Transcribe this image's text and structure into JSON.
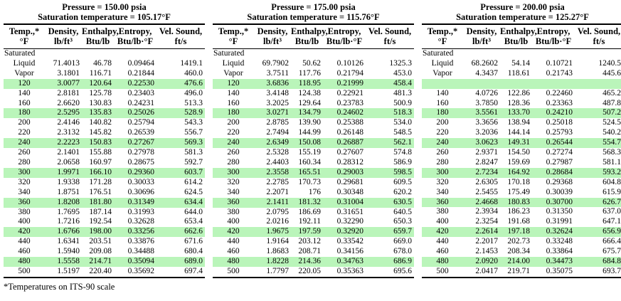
{
  "colors": {
    "highlight": "#baf5ba"
  },
  "footnote": "*Temperatures on ITS-90 scale",
  "columns": [
    {
      "line1": "Temp.,*",
      "line2": "°F"
    },
    {
      "line1": "Density,",
      "line2": "lb/ft³"
    },
    {
      "line1": "Enthalpy,",
      "line2": "Btu/lb"
    },
    {
      "line1": "Entropy,",
      "line2": "Btu/lb·°F"
    },
    {
      "line1": "Vel. Sound,",
      "line2": "ft/s"
    }
  ],
  "panels": [
    {
      "title_line1": "Pressure = 150.00 psia",
      "title_line2": "Saturation temperature = 105.17°F",
      "rows": [
        {
          "label": "Saturated",
          "d": "",
          "h": "",
          "s": "",
          "v": "",
          "hl": false
        },
        {
          "label": "Liquid",
          "d": "71.4013",
          "h": "46.78",
          "s": "0.09464",
          "v": "1419.1",
          "hl": false
        },
        {
          "label": "Vapor",
          "d": "3.1801",
          "h": "116.71",
          "s": "0.21844",
          "v": "460.0",
          "hl": false
        },
        {
          "t": "120",
          "d": "3.0077",
          "h": "120.64",
          "s": "0.22530",
          "v": "476.6",
          "hl": true
        },
        {
          "t": "140",
          "d": "2.8181",
          "h": "125.78",
          "s": "0.23403",
          "v": "496.0",
          "hl": false
        },
        {
          "t": "160",
          "d": "2.6620",
          "h": "130.83",
          "s": "0.24231",
          "v": "513.3",
          "hl": false
        },
        {
          "t": "180",
          "d": "2.5295",
          "h": "135.83",
          "s": "0.25026",
          "v": "528.9",
          "hl": true
        },
        {
          "t": "200",
          "d": "2.4146",
          "h": "140.82",
          "s": "0.25794",
          "v": "543.3",
          "hl": false
        },
        {
          "t": "220",
          "d": "2.3132",
          "h": "145.82",
          "s": "0.26539",
          "v": "556.7",
          "hl": false
        },
        {
          "t": "240",
          "d": "2.2223",
          "h": "150.83",
          "s": "0.27267",
          "v": "569.3",
          "hl": true
        },
        {
          "t": "260",
          "d": "2.1401",
          "h": "155.88",
          "s": "0.27978",
          "v": "581.3",
          "hl": false
        },
        {
          "t": "280",
          "d": "2.0658",
          "h": "160.97",
          "s": "0.28675",
          "v": "592.7",
          "hl": false
        },
        {
          "t": "300",
          "d": "1.9971",
          "h": "166.10",
          "s": "0.29360",
          "v": "603.7",
          "hl": true
        },
        {
          "t": "320",
          "d": "1.9338",
          "h": "171.28",
          "s": "0.30033",
          "v": "614.2",
          "hl": false
        },
        {
          "t": "340",
          "d": "1.8751",
          "h": "176.51",
          "s": "0.30696",
          "v": "624.5",
          "hl": false
        },
        {
          "t": "360",
          "d": "1.8208",
          "h": "181.80",
          "s": "0.31349",
          "v": "634.4",
          "hl": true
        },
        {
          "t": "380",
          "d": "1.7695",
          "h": "187.14",
          "s": "0.31993",
          "v": "644.0",
          "hl": false
        },
        {
          "t": "400",
          "d": "1.7216",
          "h": "192.54",
          "s": "0.32628",
          "v": "653.4",
          "hl": false
        },
        {
          "t": "420",
          "d": "1.6766",
          "h": "198.00",
          "s": "0.33256",
          "v": "662.6",
          "hl": true
        },
        {
          "t": "440",
          "d": "1.6341",
          "h": "203.51",
          "s": "0.33876",
          "v": "671.6",
          "hl": false
        },
        {
          "t": "460",
          "d": "1.5940",
          "h": "209.08",
          "s": "0.34488",
          "v": "680.4",
          "hl": false
        },
        {
          "t": "480",
          "d": "1.5558",
          "h": "214.71",
          "s": "0.35094",
          "v": "689.0",
          "hl": true
        },
        {
          "t": "500",
          "d": "1.5197",
          "h": "220.40",
          "s": "0.35692",
          "v": "697.4",
          "hl": false
        }
      ]
    },
    {
      "title_line1": "Pressure = 175.00 psia",
      "title_line2": "Saturation temperature = 115.76°F",
      "rows": [
        {
          "label": "Saturated",
          "d": "",
          "h": "",
          "s": "",
          "v": "",
          "hl": false
        },
        {
          "label": "Liquid",
          "d": "69.7902",
          "h": "50.62",
          "s": "0.10126",
          "v": "1325.3",
          "hl": false
        },
        {
          "label": "Vapor",
          "d": "3.7511",
          "h": "117.76",
          "s": "0.21794",
          "v": "453.0",
          "hl": false
        },
        {
          "t": "120",
          "d": "3.6836",
          "h": "118.95",
          "s": "0.21999",
          "v": "458.4",
          "hl": true
        },
        {
          "t": "140",
          "d": "3.4148",
          "h": "124.38",
          "s": "0.22921",
          "v": "481.3",
          "hl": false
        },
        {
          "t": "160",
          "d": "3.2025",
          "h": "129.64",
          "s": "0.23783",
          "v": "500.9",
          "hl": false
        },
        {
          "t": "180",
          "d": "3.0271",
          "h": "134.79",
          "s": "0.24602",
          "v": "518.3",
          "hl": true
        },
        {
          "t": "200",
          "d": "2.8785",
          "h": "139.90",
          "s": "0.25388",
          "v": "534.0",
          "hl": false
        },
        {
          "t": "220",
          "d": "2.7494",
          "h": "144.99",
          "s": "0.26148",
          "v": "548.5",
          "hl": false
        },
        {
          "t": "240",
          "d": "2.6349",
          "h": "150.08",
          "s": "0.26887",
          "v": "562.1",
          "hl": true
        },
        {
          "t": "260",
          "d": "2.5328",
          "h": "155.19",
          "s": "0.27607",
          "v": "574.8",
          "hl": false
        },
        {
          "t": "280",
          "d": "2.4403",
          "h": "160.34",
          "s": "0.28312",
          "v": "586.9",
          "hl": false
        },
        {
          "t": "300",
          "d": "2.3558",
          "h": "165.51",
          "s": "0.29003",
          "v": "598.5",
          "hl": true
        },
        {
          "t": "320",
          "d": "2.2785",
          "h": "170.73",
          "s": "0.29681",
          "v": "609.5",
          "hl": false
        },
        {
          "t": "340",
          "d": "2.2071",
          "h": "176",
          "s": "0.30348",
          "v": "620.2",
          "hl": false
        },
        {
          "t": "360",
          "d": "2.1411",
          "h": "181.32",
          "s": "0.31004",
          "v": "630.5",
          "hl": true
        },
        {
          "t": "380",
          "d": "2.0795",
          "h": "186.69",
          "s": "0.31651",
          "v": "640.5",
          "hl": false
        },
        {
          "t": "400",
          "d": "2.0216",
          "h": "192.11",
          "s": "0.32290",
          "v": "650.3",
          "hl": false
        },
        {
          "t": "420",
          "d": "1.9675",
          "h": "197.59",
          "s": "0.32920",
          "v": "659.7",
          "hl": true
        },
        {
          "t": "440",
          "d": "1.9164",
          "h": "203.12",
          "s": "0.33542",
          "v": "669.0",
          "hl": false
        },
        {
          "t": "460",
          "d": "1.8683",
          "h": "208.71",
          "s": "0.34156",
          "v": "678.0",
          "hl": false
        },
        {
          "t": "480",
          "d": "1.8228",
          "h": "214.36",
          "s": "0.34763",
          "v": "686.9",
          "hl": true
        },
        {
          "t": "500",
          "d": "1.7797",
          "h": "220.05",
          "s": "0.35363",
          "v": "695.6",
          "hl": false
        }
      ]
    },
    {
      "title_line1": "Pressure = 200.00 psia",
      "title_line2": "Saturation temperature = 125.27°F",
      "rows": [
        {
          "label": "Saturated",
          "d": "",
          "h": "",
          "s": "",
          "v": "",
          "hl": false
        },
        {
          "label": "Liquid",
          "d": "68.2602",
          "h": "54.14",
          "s": "0.10721",
          "v": "1240.5",
          "hl": false
        },
        {
          "label": "Vapor",
          "d": "4.3437",
          "h": "118.61",
          "s": "0.21743",
          "v": "445.6",
          "hl": false
        },
        {
          "t": "",
          "d": "",
          "h": "",
          "s": "",
          "v": "",
          "hl": true
        },
        {
          "t": "140",
          "d": "4.0726",
          "h": "122.86",
          "s": "0.22460",
          "v": "465.2",
          "hl": false
        },
        {
          "t": "160",
          "d": "3.7850",
          "h": "128.36",
          "s": "0.23363",
          "v": "487.8",
          "hl": false
        },
        {
          "t": "180",
          "d": "3.5561",
          "h": "133.70",
          "s": "0.24210",
          "v": "507.2",
          "hl": true
        },
        {
          "t": "200",
          "d": "3.3656",
          "h": "138.94",
          "s": "0.25018",
          "v": "524.5",
          "hl": false
        },
        {
          "t": "220",
          "d": "3.2036",
          "h": "144.14",
          "s": "0.25793",
          "v": "540.2",
          "hl": false
        },
        {
          "t": "240",
          "d": "3.0623",
          "h": "149.31",
          "s": "0.26544",
          "v": "554.7",
          "hl": true
        },
        {
          "t": "260",
          "d": "2.9371",
          "h": "154.50",
          "s": "0.27274",
          "v": "568.3",
          "hl": false
        },
        {
          "t": "280",
          "d": "2.8247",
          "h": "159.69",
          "s": "0.27987",
          "v": "581.1",
          "hl": false
        },
        {
          "t": "300",
          "d": "2.7234",
          "h": "164.92",
          "s": "0.28684",
          "v": "593.2",
          "hl": true
        },
        {
          "t": "320",
          "d": "2.6305",
          "h": "170.18",
          "s": "0.29368",
          "v": "604.8",
          "hl": false
        },
        {
          "t": "340",
          "d": "2.5455",
          "h": "175.49",
          "s": "0.30039",
          "v": "615.9",
          "hl": false
        },
        {
          "t": "360",
          "d": "2.4668",
          "h": "180.83",
          "s": "0.30700",
          "v": "626.7",
          "hl": true
        },
        {
          "t": "380",
          "d": "2.3934",
          "h": "186.23",
          "s": "0.31350",
          "v": "637.0",
          "hl": false
        },
        {
          "t": "400",
          "d": "2.3254",
          "h": "191.68",
          "s": "0.31991",
          "v": "647.1",
          "hl": false
        },
        {
          "t": "420",
          "d": "2.2614",
          "h": "197.18",
          "s": "0.32624",
          "v": "656.9",
          "hl": true
        },
        {
          "t": "440",
          "d": "2.2017",
          "h": "202.73",
          "s": "0.33248",
          "v": "666.4",
          "hl": false
        },
        {
          "t": "460",
          "d": "2.1453",
          "h": "208.34",
          "s": "0.33864",
          "v": "675.7",
          "hl": false
        },
        {
          "t": "480",
          "d": "2.0920",
          "h": "214.00",
          "s": "0.34473",
          "v": "684.8",
          "hl": true
        },
        {
          "t": "500",
          "d": "2.0417",
          "h": "219.71",
          "s": "0.35075",
          "v": "693.7",
          "hl": false
        }
      ]
    }
  ]
}
